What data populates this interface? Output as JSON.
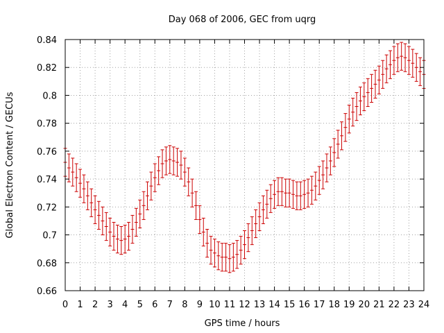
{
  "chart_data": {
    "type": "errorbar",
    "title": "Day 068 of 2006, GEC from uqrg",
    "xlabel": "GPS time / hours",
    "ylabel": "Global Electron Content / GECUs",
    "xlim": [
      0,
      24
    ],
    "ylim": [
      0.66,
      0.84
    ],
    "xticks": [
      "0",
      "1",
      "2",
      "3",
      "4",
      "5",
      "6",
      "7",
      "8",
      "9",
      "10",
      "11",
      "12",
      "13",
      "14",
      "15",
      "16",
      "17",
      "18",
      "19",
      "20",
      "21",
      "22",
      "23",
      "24"
    ],
    "yticks": [
      "0.66",
      "0.68",
      "0.7",
      "0.72",
      "0.74",
      "0.76",
      "0.78",
      "0.8",
      "0.82",
      "0.84"
    ],
    "grid": true,
    "series_color": "#cc0000",
    "error": 0.01,
    "x": [
      0,
      0.25,
      0.5,
      0.75,
      1,
      1.25,
      1.5,
      1.75,
      2,
      2.25,
      2.5,
      2.75,
      3,
      3.25,
      3.5,
      3.75,
      4,
      4.25,
      4.5,
      4.75,
      5,
      5.25,
      5.5,
      5.75,
      6,
      6.25,
      6.5,
      6.75,
      7,
      7.25,
      7.5,
      7.75,
      8,
      8.25,
      8.5,
      8.75,
      9,
      9.25,
      9.5,
      9.75,
      10,
      10.25,
      10.5,
      10.75,
      11,
      11.25,
      11.5,
      11.75,
      12,
      12.25,
      12.5,
      12.75,
      13,
      13.25,
      13.5,
      13.75,
      14,
      14.25,
      14.5,
      14.75,
      15,
      15.25,
      15.5,
      15.75,
      16,
      16.25,
      16.5,
      16.75,
      17,
      17.25,
      17.5,
      17.75,
      18,
      18.25,
      18.5,
      18.75,
      19,
      19.25,
      19.5,
      19.75,
      20,
      20.25,
      20.5,
      20.75,
      21,
      21.25,
      21.5,
      21.75,
      22,
      22.25,
      22.5,
      22.75,
      23,
      23.25,
      23.5,
      23.75,
      24
    ],
    "y": [
      0.752,
      0.748,
      0.745,
      0.741,
      0.737,
      0.733,
      0.728,
      0.723,
      0.718,
      0.714,
      0.71,
      0.706,
      0.702,
      0.699,
      0.697,
      0.696,
      0.697,
      0.699,
      0.704,
      0.709,
      0.715,
      0.721,
      0.728,
      0.735,
      0.741,
      0.746,
      0.751,
      0.753,
      0.754,
      0.753,
      0.752,
      0.75,
      0.745,
      0.738,
      0.73,
      0.721,
      0.711,
      0.702,
      0.694,
      0.689,
      0.687,
      0.685,
      0.684,
      0.684,
      0.683,
      0.684,
      0.686,
      0.689,
      0.693,
      0.698,
      0.703,
      0.708,
      0.713,
      0.718,
      0.722,
      0.726,
      0.729,
      0.731,
      0.731,
      0.73,
      0.73,
      0.729,
      0.728,
      0.728,
      0.729,
      0.73,
      0.732,
      0.735,
      0.739,
      0.743,
      0.748,
      0.753,
      0.759,
      0.765,
      0.771,
      0.777,
      0.783,
      0.788,
      0.792,
      0.796,
      0.799,
      0.802,
      0.805,
      0.808,
      0.811,
      0.815,
      0.819,
      0.822,
      0.825,
      0.827,
      0.828,
      0.827,
      0.825,
      0.823,
      0.82,
      0.817,
      0.815
    ]
  }
}
